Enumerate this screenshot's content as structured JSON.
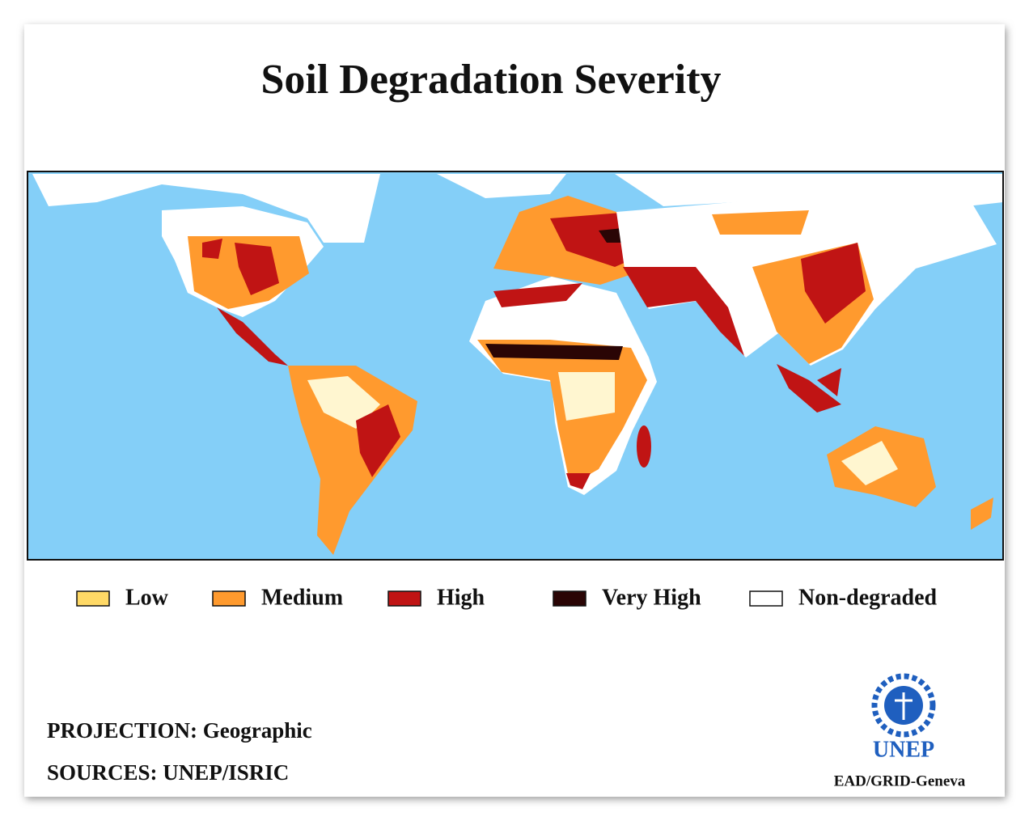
{
  "title": "Soil Degradation Severity",
  "legend": [
    {
      "label": "Low",
      "color": "#ffd966"
    },
    {
      "label": "Medium",
      "color": "#ff9a2e"
    },
    {
      "label": "High",
      "color": "#c01414"
    },
    {
      "label": "Very High",
      "color": "#2a0505"
    },
    {
      "label": "Non-degraded",
      "color": "#ffffff"
    }
  ],
  "projection": "PROJECTION: Geographic",
  "sources": "SOURCES: UNEP/ISRIC",
  "logo": {
    "name": "UNEP",
    "caption": "EAD/GRID-Geneva"
  }
}
